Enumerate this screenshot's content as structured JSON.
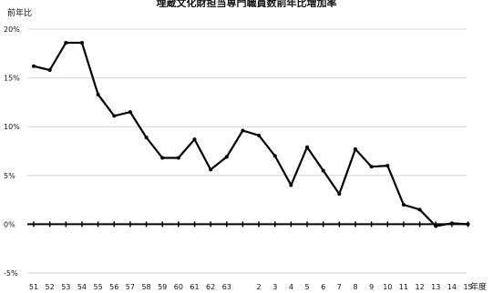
{
  "chart_data": {
    "type": "line",
    "title": "埋蔵文化財担当専門職員数前年比増加率",
    "ylabel": "前年比",
    "xlabel": "年度",
    "ylim": [
      -5,
      20
    ],
    "yticks": [
      "-5%",
      "0%",
      "5%",
      "10%",
      "15%",
      "20%"
    ],
    "ytick_values": [
      -5,
      0,
      5,
      10,
      15,
      20
    ],
    "grid": true,
    "categories": [
      "51",
      "52",
      "53",
      "54",
      "55",
      "56",
      "57",
      "58",
      "59",
      "60",
      "61",
      "62",
      "63",
      "",
      "2",
      "3",
      "4",
      "5",
      "6",
      "7",
      "8",
      "9",
      "10",
      "11",
      "12",
      "13",
      "14",
      "15"
    ],
    "values": [
      16.2,
      15.8,
      18.6,
      18.6,
      13.3,
      11.1,
      11.5,
      8.9,
      6.8,
      6.8,
      8.7,
      5.6,
      6.9,
      9.6,
      9.1,
      7.0,
      4.0,
      7.9,
      5.5,
      3.1,
      7.7,
      5.9,
      6.0,
      2.0,
      1.5,
      -0.2,
      0.1,
      0.0
    ]
  }
}
